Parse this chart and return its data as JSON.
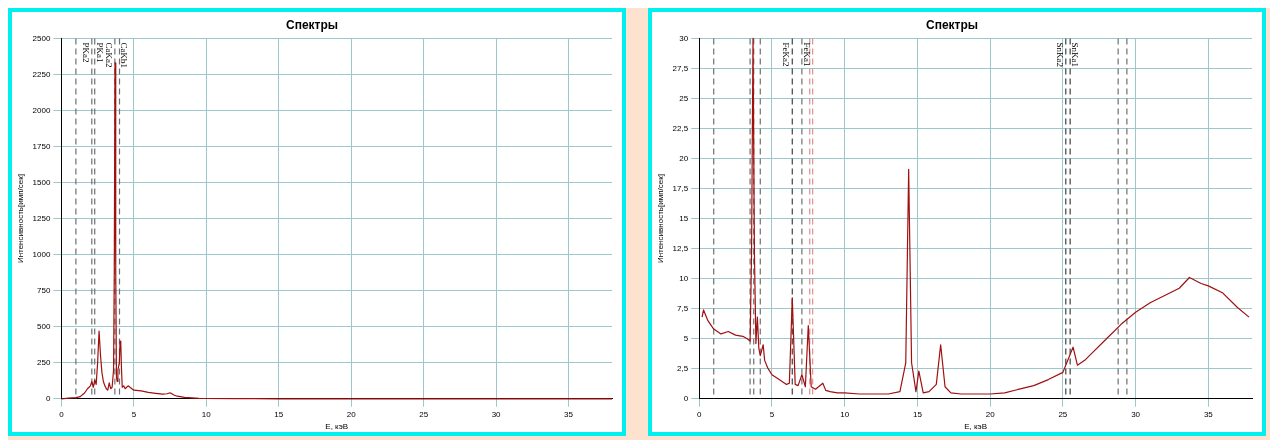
{
  "chart_data": [
    {
      "type": "line",
      "title": "Спектры",
      "xlabel": "E, кэВ",
      "ylabel": "Интенсивность[имп/сек]",
      "grid": true,
      "legend": false,
      "marker": "none",
      "line_style": "solid",
      "xlim": [
        0,
        38
      ],
      "xticks": [
        0,
        5,
        10,
        15,
        20,
        25,
        30,
        35
      ],
      "ylim": [
        0,
        2500
      ],
      "yticks": [
        0,
        250,
        500,
        750,
        1000,
        1250,
        1500,
        1750,
        2000,
        2250,
        2500
      ],
      "series": [
        {
          "color": "#a01010",
          "x": [
            0,
            0.5,
            1,
            1.3,
            1.6,
            1.8,
            2.0,
            2.1,
            2.2,
            2.3,
            2.4,
            2.5,
            2.6,
            2.7,
            2.8,
            2.9,
            3.0,
            3.1,
            3.2,
            3.3,
            3.4,
            3.5,
            3.6,
            3.65,
            3.7,
            3.75,
            3.8,
            3.85,
            3.9,
            4.0,
            4.05,
            4.1,
            4.15,
            4.2,
            4.3,
            4.4,
            4.6,
            5,
            5.5,
            6,
            6.5,
            7,
            7.3,
            7.5,
            7.8,
            8,
            8.5,
            9,
            9.5,
            10,
            12,
            15,
            20,
            25,
            30,
            35,
            38
          ],
          "values": [
            0,
            5,
            8,
            15,
            40,
            70,
            90,
            120,
            80,
            130,
            100,
            250,
            470,
            300,
            180,
            120,
            90,
            70,
            60,
            110,
            70,
            80,
            200,
            900,
            2330,
            900,
            150,
            120,
            200,
            250,
            400,
            380,
            200,
            80,
            90,
            70,
            90,
            60,
            55,
            45,
            38,
            32,
            35,
            42,
            25,
            18,
            10,
            6,
            3,
            2,
            1,
            0,
            0,
            0,
            0,
            0,
            0
          ]
        }
      ],
      "ref_lines": [
        {
          "axis": "x",
          "value": 1.0,
          "color": "#707070",
          "line_style": "dashed"
        },
        {
          "axis": "x",
          "value": 2.1,
          "label": "PKa2",
          "color": "#707070",
          "line_style": "dashed"
        },
        {
          "axis": "x",
          "value": 2.3,
          "label": "PKa1",
          "color": "#707070",
          "line_style": "dashed"
        },
        {
          "axis": "x",
          "value": 3.69,
          "label": "CaKa2",
          "color": "#707070",
          "line_style": "dashed"
        },
        {
          "axis": "x",
          "value": 4.01,
          "label": "CaKb1",
          "color": "#707070",
          "line_style": "dashed"
        }
      ]
    },
    {
      "type": "line",
      "title": "Спектры",
      "xlabel": "E, кэВ",
      "ylabel": "Интенсивность[имп/сек]",
      "grid": true,
      "legend": false,
      "marker": "none",
      "line_style": "solid",
      "xlim": [
        0,
        38
      ],
      "xticks": [
        0,
        5,
        10,
        15,
        20,
        25,
        30,
        35
      ],
      "ylim": [
        0,
        30
      ],
      "yticks": [
        0,
        {
          "value": 2.5,
          "label": "2,5"
        },
        5,
        {
          "value": 7.5,
          "label": "7,5"
        },
        10,
        {
          "value": 12.5,
          "label": "12,5"
        },
        15,
        {
          "value": 17.5,
          "label": "17,5"
        },
        20,
        {
          "value": 22.5,
          "label": "22,5"
        },
        25,
        {
          "value": 27.5,
          "label": "27,5"
        },
        30
      ],
      "series": [
        {
          "color": "#a01010",
          "x": [
            0.2,
            0.3,
            0.6,
            1,
            1.5,
            2,
            2.5,
            3,
            3.3,
            3.5,
            3.6,
            3.7,
            3.8,
            3.9,
            4.0,
            4.1,
            4.2,
            4.4,
            4.5,
            4.7,
            5,
            5.5,
            6,
            6.2,
            6.4,
            6.6,
            6.8,
            7.06,
            7.3,
            7.5,
            7.7,
            8,
            8.5,
            8.7,
            9,
            9.5,
            10,
            11,
            12,
            13,
            13.8,
            14.2,
            14.4,
            14.6,
            14.9,
            15.1,
            15.4,
            15.8,
            16.3,
            16.6,
            16.9,
            17.3,
            18,
            19,
            20,
            21,
            22,
            23,
            24,
            25,
            25.4,
            25.7,
            26,
            26.5,
            27,
            28,
            29,
            30,
            31,
            32,
            33,
            33.7,
            34.5,
            35,
            36,
            37,
            37.8
          ],
          "values": [
            6.8,
            7.4,
            6.5,
            5.8,
            5.4,
            5.6,
            5.3,
            5.2,
            5.0,
            4.8,
            12,
            30,
            12,
            4.6,
            6.8,
            4.2,
            3.6,
            4.5,
            3.2,
            2.6,
            2.0,
            1.6,
            1.2,
            1.3,
            8.4,
            1.2,
            1.1,
            2.0,
            1.0,
            6.1,
            1.0,
            0.8,
            1.3,
            0.7,
            0.6,
            0.5,
            0.5,
            0.4,
            0.4,
            0.4,
            0.6,
            3,
            19.1,
            3,
            0.6,
            2.3,
            0.5,
            0.6,
            1.2,
            4.5,
            1.0,
            0.5,
            0.4,
            0.4,
            0.4,
            0.5,
            0.8,
            1.1,
            1.6,
            2.2,
            3.4,
            4.3,
            2.8,
            3.2,
            3.8,
            5.0,
            6.2,
            7.2,
            8.0,
            8.6,
            9.2,
            10.1,
            9.6,
            9.4,
            8.8,
            7.6,
            6.8
          ]
        }
      ],
      "ref_lines": [
        {
          "axis": "x",
          "value": 1.0,
          "color": "#707070",
          "line_style": "dashed"
        },
        {
          "axis": "x",
          "value": 3.5,
          "color": "#707070",
          "line_style": "dashed"
        },
        {
          "axis": "x",
          "value": 3.75,
          "color": "#707070",
          "line_style": "dashed"
        },
        {
          "axis": "x",
          "value": 4.2,
          "color": "#707070",
          "line_style": "dashed"
        },
        {
          "axis": "x",
          "value": 6.4,
          "label": "FeKa2",
          "color": "#404040",
          "line_style": "dashed"
        },
        {
          "axis": "x",
          "value": 7.06,
          "label": "FeKa1",
          "color": "#707070",
          "line_style": "dashed"
        },
        {
          "axis": "x",
          "value": 7.6,
          "color": "#e09090",
          "line_style": "dashed"
        },
        {
          "axis": "x",
          "value": 7.8,
          "color": "#e09090",
          "line_style": "dashed"
        },
        {
          "axis": "x",
          "value": 25.2,
          "label": "SnKa2",
          "color": "#404040",
          "line_style": "dashed"
        },
        {
          "axis": "x",
          "value": 25.5,
          "label": "SnKa1",
          "color": "#404040",
          "line_style": "dashed"
        },
        {
          "axis": "x",
          "value": 28.8,
          "color": "#707070",
          "line_style": "dashed"
        },
        {
          "axis": "x",
          "value": 29.4,
          "color": "#707070",
          "line_style": "dashed"
        }
      ]
    }
  ]
}
